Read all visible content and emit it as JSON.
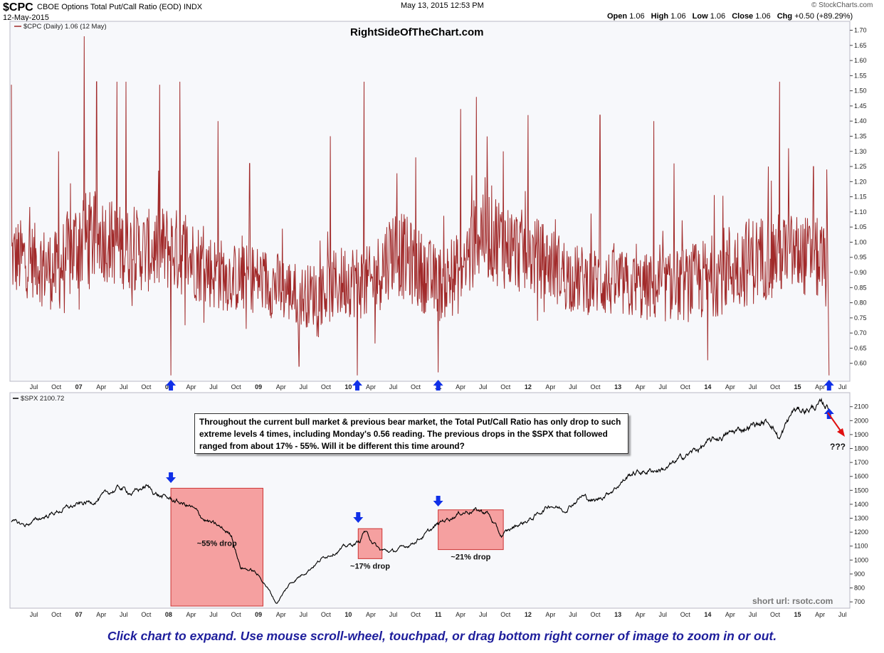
{
  "header": {
    "symbol": "$CPC",
    "description": "CBOE Options Total Put/Call Ratio (EOD)  INDX",
    "date": "12-May-2015",
    "timestamp": "May 13, 2015 12:53 PM",
    "logo": "© StockCharts.com",
    "ohlc": {
      "open_label": "Open",
      "open": "1.06",
      "high_label": "High",
      "high": "1.06",
      "low_label": "Low",
      "low": "1.06",
      "close_label": "Close",
      "close": "1.06",
      "chg_label": "Chg",
      "chg": "+0.50 (+89.29%)"
    }
  },
  "watermark": "RightSideOfTheChart.com",
  "annotation_text": "Throughout the current bull market & previous bear market, the Total Put/Call Ratio has only drop to such extreme levels 4 times, including Monday's 0.56 reading. The previous drops in the $SPX that followed ranged from about 17% - 55%. Will it be different this time around?",
  "short_url": "short url: rsotc.com",
  "question_marks": "???",
  "footer": "Click chart to expand. Use mouse scroll-wheel, touchpad, or drag bottom right corner of image to zoom in or out.",
  "colors": {
    "cpc_line": "#a12a2a",
    "spx_line": "#000000",
    "box_fill": "#f5a0a0",
    "box_stroke": "#cc3333",
    "arrow": "#1030e8",
    "red_arrow": "#e01010",
    "footer": "#1e1e9c"
  },
  "x_axis_labels": [
    {
      "t": 0.5,
      "text": "Jul",
      "bold": false
    },
    {
      "t": 1.0,
      "text": "Oct",
      "bold": false
    },
    {
      "t": 1.5,
      "text": "07",
      "bold": true
    },
    {
      "t": 2.0,
      "text": "Apr",
      "bold": false
    },
    {
      "t": 2.5,
      "text": "Jul",
      "bold": false
    },
    {
      "t": 3.0,
      "text": "Oct",
      "bold": false
    },
    {
      "t": 3.5,
      "text": "08",
      "bold": true
    },
    {
      "t": 4.0,
      "text": "Apr",
      "bold": false
    },
    {
      "t": 4.5,
      "text": "Jul",
      "bold": false
    },
    {
      "t": 5.0,
      "text": "Oct",
      "bold": false
    },
    {
      "t": 5.5,
      "text": "09",
      "bold": true
    },
    {
      "t": 6.0,
      "text": "Apr",
      "bold": false
    },
    {
      "t": 6.5,
      "text": "Jul",
      "bold": false
    },
    {
      "t": 7.0,
      "text": "Oct",
      "bold": false
    },
    {
      "t": 7.5,
      "text": "10",
      "bold": true
    },
    {
      "t": 8.0,
      "text": "Apr",
      "bold": false
    },
    {
      "t": 8.5,
      "text": "Jul",
      "bold": false
    },
    {
      "t": 9.0,
      "text": "Oct",
      "bold": false
    },
    {
      "t": 9.5,
      "text": "11",
      "bold": true
    },
    {
      "t": 10.0,
      "text": "Apr",
      "bold": false
    },
    {
      "t": 10.5,
      "text": "Jul",
      "bold": false
    },
    {
      "t": 11.0,
      "text": "Oct",
      "bold": false
    },
    {
      "t": 11.5,
      "text": "12",
      "bold": true
    },
    {
      "t": 12.0,
      "text": "Apr",
      "bold": false
    },
    {
      "t": 12.5,
      "text": "Jul",
      "bold": false
    },
    {
      "t": 13.0,
      "text": "Oct",
      "bold": false
    },
    {
      "t": 13.5,
      "text": "13",
      "bold": true
    },
    {
      "t": 14.0,
      "text": "Apr",
      "bold": false
    },
    {
      "t": 14.5,
      "text": "Jul",
      "bold": false
    },
    {
      "t": 15.0,
      "text": "Oct",
      "bold": false
    },
    {
      "t": 15.5,
      "text": "14",
      "bold": true
    },
    {
      "t": 16.0,
      "text": "Apr",
      "bold": false
    },
    {
      "t": 16.5,
      "text": "Jul",
      "bold": false
    },
    {
      "t": 17.0,
      "text": "Oct",
      "bold": false
    },
    {
      "t": 17.5,
      "text": "15",
      "bold": true
    },
    {
      "t": 18.0,
      "text": "Apr",
      "bold": false
    },
    {
      "t": 18.5,
      "text": "Jul",
      "bold": false
    }
  ],
  "chart_data": [
    {
      "type": "line",
      "legend": "$CPC (Daily) 1.06 (12 May)",
      "legend_placement": "top-left",
      "ylim": [
        0.55,
        1.72
      ],
      "yticks": [
        0.6,
        0.65,
        0.7,
        0.75,
        0.8,
        0.85,
        0.9,
        0.95,
        1.0,
        1.05,
        1.1,
        1.15,
        1.2,
        1.25,
        1.3,
        1.35,
        1.4,
        1.45,
        1.5,
        1.55,
        1.6,
        1.65,
        1.7
      ],
      "ytick_labels": [
        "0.60",
        "0.65",
        "0.70",
        "0.75",
        "0.80",
        "0.85",
        "0.90",
        "0.95",
        "1.00",
        "1.05",
        "1.10",
        "1.15",
        "1.20",
        "1.25",
        "1.30",
        "1.35",
        "1.40",
        "1.45",
        "1.50",
        "1.55",
        "1.60",
        "1.65",
        "1.70"
      ],
      "grid": false,
      "series_envelope": {
        "t": [
          0,
          0.5,
          1.0,
          1.5,
          2.0,
          2.5,
          3.0,
          3.5,
          4.0,
          4.5,
          5.0,
          5.5,
          6.0,
          6.5,
          7.0,
          7.5,
          8.0,
          8.5,
          9.0,
          9.5,
          10.0,
          10.5,
          11.0,
          11.5,
          12.0,
          12.5,
          13.0,
          13.5,
          14.0,
          14.5,
          15.0,
          15.5,
          16.0,
          16.5,
          17.0,
          17.5,
          18.0,
          18.2
        ],
        "center": [
          0.95,
          0.94,
          0.9,
          1.0,
          1.02,
          0.98,
          0.97,
          0.98,
          0.95,
          0.9,
          0.88,
          0.88,
          0.85,
          0.82,
          0.84,
          0.88,
          0.86,
          0.98,
          0.92,
          0.86,
          0.9,
          1.05,
          0.99,
          0.96,
          0.93,
          0.88,
          0.87,
          0.86,
          0.85,
          0.85,
          0.86,
          0.88,
          0.92,
          0.94,
          0.96,
          0.96,
          0.94,
          0.9
        ],
        "amplitude": [
          0.12,
          0.11,
          0.12,
          0.15,
          0.13,
          0.12,
          0.12,
          0.13,
          0.12,
          0.11,
          0.1,
          0.1,
          0.1,
          0.09,
          0.1,
          0.11,
          0.11,
          0.13,
          0.12,
          0.11,
          0.12,
          0.15,
          0.13,
          0.12,
          0.11,
          0.1,
          0.1,
          0.1,
          0.1,
          0.1,
          0.11,
          0.12,
          0.13,
          0.13,
          0.12,
          0.12,
          0.12,
          0.12
        ]
      },
      "spikes": [
        {
          "t": 0.0,
          "value": 1.52
        },
        {
          "t": 1.05,
          "value": 1.3
        },
        {
          "t": 1.62,
          "value": 1.68
        },
        {
          "t": 1.9,
          "value": 1.53
        },
        {
          "t": 2.35,
          "value": 1.53
        },
        {
          "t": 2.55,
          "value": 1.53
        },
        {
          "t": 3.3,
          "value": 1.52
        },
        {
          "t": 3.55,
          "value": 0.56
        },
        {
          "t": 3.75,
          "value": 1.53
        },
        {
          "t": 4.6,
          "value": 1.4
        },
        {
          "t": 5.3,
          "value": 1.26
        },
        {
          "t": 6.4,
          "value": 0.59
        },
        {
          "t": 7.1,
          "value": 1.35
        },
        {
          "t": 7.7,
          "value": 0.56
        },
        {
          "t": 7.85,
          "value": 1.53
        },
        {
          "t": 9.0,
          "value": 1.28
        },
        {
          "t": 9.5,
          "value": 0.57
        },
        {
          "t": 10.0,
          "value": 1.44
        },
        {
          "t": 10.35,
          "value": 1.48
        },
        {
          "t": 10.95,
          "value": 1.3
        },
        {
          "t": 11.5,
          "value": 1.42
        },
        {
          "t": 13.1,
          "value": 1.42
        },
        {
          "t": 14.3,
          "value": 1.4
        },
        {
          "t": 14.75,
          "value": 1.26
        },
        {
          "t": 15.5,
          "value": 0.61
        },
        {
          "t": 16.85,
          "value": 1.25
        },
        {
          "t": 17.1,
          "value": 1.53
        },
        {
          "t": 17.3,
          "value": 1.31
        },
        {
          "t": 17.85,
          "value": 1.25
        }
      ],
      "last_points": [
        {
          "t": 18.15,
          "value": 1.24
        },
        {
          "t": 18.2,
          "value": 0.56
        }
      ],
      "extreme_low_markers": [
        3.55,
        7.7,
        9.5,
        18.2
      ]
    },
    {
      "type": "line",
      "legend": "$SPX 2100.72",
      "legend_placement": "top-left",
      "ylim": [
        670,
        2170
      ],
      "yticks": [
        700,
        800,
        900,
        1000,
        1100,
        1200,
        1300,
        1400,
        1500,
        1600,
        1700,
        1800,
        1900,
        2000,
        2100
      ],
      "ytick_labels": [
        "700",
        "800",
        "900",
        "1000",
        "1100",
        "1200",
        "1300",
        "1400",
        "1500",
        "1600",
        "1700",
        "1800",
        "1900",
        "2000",
        "2100"
      ],
      "grid": false,
      "x": [
        0,
        0.3,
        0.8,
        1.3,
        1.8,
        2.0,
        2.4,
        2.7,
        3.0,
        3.3,
        3.6,
        4.0,
        4.3,
        4.6,
        4.9,
        5.1,
        5.4,
        5.65,
        5.9,
        6.2,
        6.6,
        7.0,
        7.4,
        7.75,
        7.85,
        8.2,
        8.5,
        8.8,
        9.2,
        9.6,
        10.0,
        10.3,
        10.6,
        10.9,
        11.2,
        11.6,
        12.0,
        12.3,
        12.7,
        13.0,
        13.4,
        13.8,
        14.2,
        14.6,
        15.0,
        15.3,
        15.7,
        16.1,
        16.5,
        16.9,
        17.1,
        17.4,
        17.7,
        18.0,
        18.2
      ],
      "y": [
        1270,
        1250,
        1320,
        1380,
        1420,
        1450,
        1520,
        1480,
        1530,
        1460,
        1430,
        1380,
        1290,
        1240,
        1180,
        950,
        920,
        830,
        690,
        830,
        930,
        1030,
        1090,
        1130,
        1210,
        1070,
        1060,
        1100,
        1180,
        1280,
        1340,
        1360,
        1340,
        1170,
        1240,
        1300,
        1400,
        1360,
        1460,
        1420,
        1510,
        1620,
        1640,
        1660,
        1750,
        1800,
        1870,
        1920,
        1970,
        1990,
        1870,
        2070,
        2080,
        2110,
        2100
      ],
      "annotations": [
        {
          "label": "~55% drop",
          "x_start": 3.55,
          "x_end": 5.6,
          "y_top": 1515,
          "y_bottom": 670
        },
        {
          "label": "~17% drop",
          "x_start": 7.72,
          "x_end": 8.25,
          "y_top": 1225,
          "y_bottom": 1010
        },
        {
          "label": "~21% drop",
          "x_start": 9.5,
          "x_end": 10.95,
          "y_top": 1360,
          "y_bottom": 1075
        }
      ],
      "arrow_markers": [
        3.55,
        7.72,
        9.5,
        18.2
      ]
    }
  ]
}
